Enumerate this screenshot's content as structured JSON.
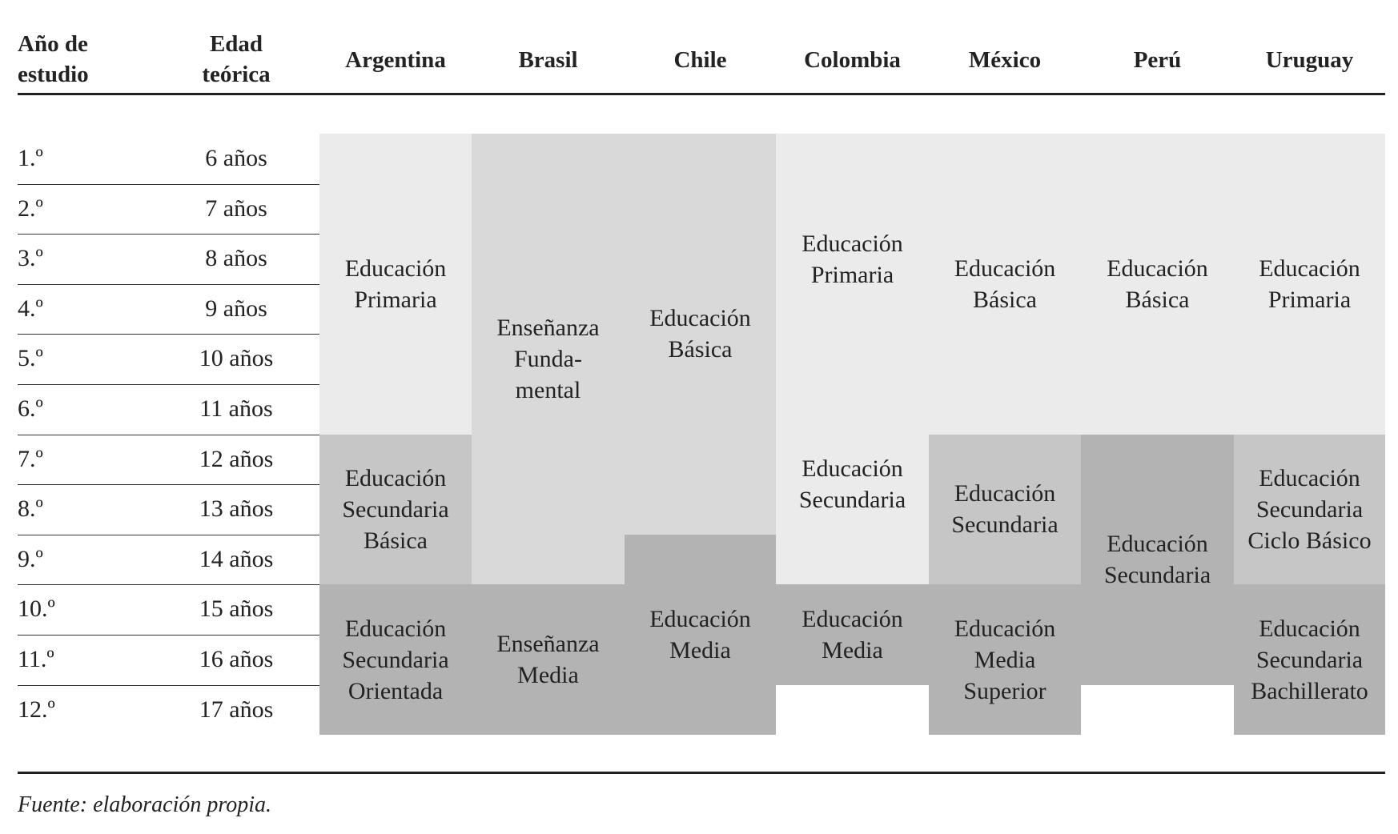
{
  "header": {
    "year_col": "Año de estudio",
    "age_col": "Edad teórica",
    "countries": [
      "Argentina",
      "Brasil",
      "Chile",
      "Colombia",
      "México",
      "Perú",
      "Uruguay"
    ]
  },
  "rows": [
    {
      "year": "1.º",
      "age": "6 años"
    },
    {
      "year": "2.º",
      "age": "7 años"
    },
    {
      "year": "3.º",
      "age": "8 años"
    },
    {
      "year": "4.º",
      "age": "9 años"
    },
    {
      "year": "5.º",
      "age": "10 años"
    },
    {
      "year": "6.º",
      "age": "11 años"
    },
    {
      "year": "7.º",
      "age": "12 años"
    },
    {
      "year": "8.º",
      "age": "13 años"
    },
    {
      "year": "9.º",
      "age": "14 años"
    },
    {
      "year": "10.º",
      "age": "15 años"
    },
    {
      "year": "11.º",
      "age": "16 años"
    },
    {
      "year": "12.º",
      "age": "17 años"
    }
  ],
  "colors": {
    "light": "#ebebeb",
    "light2": "#d9d9d9",
    "mid": "#c6c6c6",
    "dark": "#b3b3b3"
  },
  "blocks": [
    {
      "country": 0,
      "start": 1,
      "end": 6,
      "shade": "light",
      "label": "Educación\nPrimaria"
    },
    {
      "country": 0,
      "start": 7,
      "end": 9,
      "shade": "mid",
      "label": "Educación\nSecundaria\nBásica"
    },
    {
      "country": 0,
      "start": 10,
      "end": 12,
      "shade": "dark",
      "label": "Educación\nSecundaria\nOrientada"
    },
    {
      "country": 1,
      "start": 1,
      "end": 9,
      "shade": "light2",
      "label": "Enseñanza\nFunda-\nmental"
    },
    {
      "country": 1,
      "start": 10,
      "end": 12,
      "shade": "dark",
      "label": "Enseñanza\nMedia"
    },
    {
      "country": 2,
      "start": 1,
      "end": 8,
      "shade": "light2",
      "label": "Educación\nBásica"
    },
    {
      "country": 2,
      "start": 9,
      "end": 12,
      "shade": "dark",
      "label": "Educación\nMedia"
    },
    {
      "country": 3,
      "start": 1,
      "end": 5,
      "shade": "light",
      "label": "Educación\nPrimaria"
    },
    {
      "country": 3,
      "start": 6,
      "end": 9,
      "shade": "light",
      "label": "Educación\nSecundaria"
    },
    {
      "country": 3,
      "start": 10,
      "end": 11,
      "shade": "dark",
      "label": "Educación\nMedia"
    },
    {
      "country": 4,
      "start": 1,
      "end": 6,
      "shade": "light",
      "label": "Educación\nBásica"
    },
    {
      "country": 4,
      "start": 7,
      "end": 9,
      "shade": "mid",
      "label": "Educación\nSecundaria"
    },
    {
      "country": 4,
      "start": 10,
      "end": 12,
      "shade": "dark",
      "label": "Educación\nMedia\nSuperior"
    },
    {
      "country": 5,
      "start": 1,
      "end": 6,
      "shade": "light",
      "label": "Educación\nBásica"
    },
    {
      "country": 5,
      "start": 7,
      "end": 11,
      "shade": "dark",
      "label": "Educación\nSecundaria"
    },
    {
      "country": 6,
      "start": 1,
      "end": 6,
      "shade": "light",
      "label": "Educación\nPrimaria"
    },
    {
      "country": 6,
      "start": 7,
      "end": 9,
      "shade": "mid",
      "label": "Educación\nSecundaria\nCiclo Básico"
    },
    {
      "country": 6,
      "start": 10,
      "end": 12,
      "shade": "dark",
      "label": "Educación\nSecundaria\nBachillerato"
    }
  ],
  "source": "Fuente: elaboración propia."
}
